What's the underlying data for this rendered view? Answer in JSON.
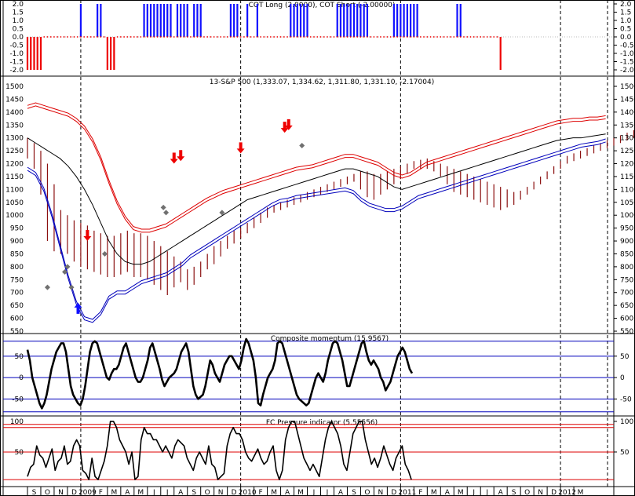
{
  "colors": {
    "cot_long": "#1010ff",
    "cot_short": "#ee0000",
    "price_bar": "#8b1010",
    "upper_band": "#dd0000",
    "middle_band": "#000000",
    "lower_band": "#0000bb",
    "sell_arrow": "#ee0000",
    "buy_arrow": "#1010ff",
    "diamond": "#707070",
    "momentum_line": "#000000",
    "momentum_ref": "#0000bb",
    "pressure_line": "#000000",
    "pressure_ref": "#dd0000"
  },
  "x_axis": {
    "labels": [
      "S",
      "O",
      "N",
      "D",
      "2009",
      "F",
      "M",
      "A",
      "M",
      "J",
      "J",
      "A",
      "S",
      "O",
      "N",
      "D",
      "2010",
      "F",
      "M",
      "A",
      "M",
      "J",
      "J",
      "A",
      "S",
      "O",
      "N",
      "D",
      "2011",
      "F",
      "M",
      "A",
      "M",
      "J",
      "J",
      "A",
      "S",
      "O",
      "N",
      "D",
      "2012",
      "M"
    ]
  },
  "chart_data": [
    {
      "type": "bar",
      "title": "COT Long (2.0000), COT Short (-2.00000)",
      "ylim": [
        -2,
        2
      ],
      "yticks": [
        "2.0",
        "1.5",
        "1.0",
        "0.5",
        "0.0",
        "-0.5",
        "-1.0",
        "-1.5",
        "-2.0"
      ],
      "x_start_month": 0,
      "x_step_months": 0.25,
      "series": [
        {
          "name": "COT Long",
          "marker_value": 2,
          "values": [
            0,
            0,
            0,
            0,
            0,
            0,
            0,
            0,
            0,
            0,
            0,
            0,
            0,
            0,
            0,
            0,
            2,
            0,
            0,
            0,
            0,
            2,
            2,
            0,
            0,
            0,
            0,
            0,
            0,
            0,
            0,
            0,
            0,
            0,
            0,
            2,
            2,
            2,
            2,
            2,
            2,
            2,
            2,
            2,
            0,
            2,
            2,
            2,
            2,
            0,
            2,
            2,
            2,
            0,
            0,
            0,
            0,
            0,
            0,
            0,
            0,
            2,
            2,
            2,
            0,
            0,
            2,
            0,
            0,
            2,
            0,
            0,
            0,
            0,
            0,
            0,
            0,
            0,
            0,
            2,
            2,
            2,
            2,
            2,
            2,
            0,
            0,
            0,
            0,
            0,
            0,
            0,
            0,
            2,
            2,
            2,
            2,
            2,
            2,
            2,
            2,
            2,
            2,
            0,
            0,
            0,
            0,
            0,
            0,
            0,
            2,
            2,
            2,
            2,
            2,
            2,
            2,
            2,
            0,
            0,
            0,
            0,
            0,
            0,
            0,
            0,
            0,
            0,
            0,
            2,
            2,
            0,
            0,
            0,
            0,
            0,
            0,
            0,
            0,
            0,
            0,
            0,
            0,
            0
          ]
        },
        {
          "name": "COT Short",
          "marker_value": -2,
          "values": [
            -2,
            -2,
            -2,
            -2,
            -2,
            0,
            0,
            0,
            0,
            0,
            0,
            0,
            0,
            0,
            0,
            0,
            0,
            0,
            0,
            0,
            0,
            0,
            0,
            0,
            -2,
            -2,
            -2,
            0,
            0,
            0,
            0,
            0,
            0,
            0,
            0,
            0,
            0,
            0,
            0,
            0,
            0,
            0,
            0,
            0,
            0,
            0,
            0,
            0,
            0,
            0,
            0,
            0,
            0,
            0,
            0,
            0,
            0,
            0,
            0,
            0,
            0,
            0,
            0,
            0,
            0,
            0,
            0,
            0,
            0,
            0,
            0,
            0,
            0,
            0,
            0,
            0,
            0,
            0,
            0,
            0,
            0,
            0,
            0,
            0,
            0,
            0,
            0,
            0,
            0,
            0,
            0,
            0,
            0,
            0,
            0,
            0,
            0,
            0,
            0,
            0,
            0,
            0,
            0,
            0,
            0,
            0,
            0,
            0,
            0,
            0,
            0,
            0,
            0,
            0,
            0,
            0,
            0,
            0,
            0,
            0,
            0,
            0,
            0,
            0,
            0,
            0,
            0,
            0,
            0,
            0,
            0,
            0,
            0,
            0,
            0,
            0,
            0,
            0,
            0,
            0,
            0,
            0,
            -2
          ]
        }
      ]
    },
    {
      "type": "line",
      "title": "13-S&P 500 (1,333.07, 1,334.62, 1,311.80, 1,331.10, -2.17004)",
      "ylim": [
        550,
        1500
      ],
      "yticks": [
        1500,
        1450,
        1400,
        1350,
        1300,
        1250,
        1200,
        1150,
        1100,
        1050,
        1000,
        950,
        900,
        850,
        800,
        750,
        700,
        650,
        600,
        550
      ],
      "x_start_month": 0,
      "x_step_months": 0.5,
      "series": [
        {
          "name": "price_high",
          "values": [
            1300,
            1280,
            1250,
            1200,
            1120,
            1020,
            1000,
            980,
            970,
            960,
            940,
            930,
            920,
            920,
            930,
            940,
            930,
            930,
            920,
            900,
            880,
            860,
            840,
            820,
            790,
            800,
            820,
            850,
            880,
            900,
            920,
            940,
            950,
            970,
            990,
            1010,
            1030,
            1040,
            1050,
            1060,
            1070,
            1080,
            1090,
            1100,
            1110,
            1120,
            1130,
            1140,
            1150,
            1160,
            1170,
            1170,
            1160,
            1160,
            1170,
            1180,
            1190,
            1200,
            1210,
            1215,
            1220,
            1210,
            1200,
            1190,
            1180,
            1170,
            1160,
            1150,
            1140,
            1130,
            1120,
            1110,
            1100,
            1090,
            1095,
            1110,
            1130,
            1150,
            1170,
            1190,
            1210,
            1230,
            1240,
            1250,
            1260,
            1270,
            1280,
            1290,
            1300,
            1310,
            1320,
            1330,
            1340,
            1350,
            1355,
            1360,
            1365,
            1370,
            1360,
            1360,
            1350,
            1340
          ]
        },
        {
          "name": "price_low",
          "values": [
            1220,
            1180,
            1080,
            900,
            860,
            850,
            850,
            820,
            800,
            790,
            780,
            770,
            760,
            760,
            770,
            780,
            760,
            760,
            750,
            730,
            710,
            690,
            720,
            740,
            710,
            730,
            760,
            790,
            810,
            840,
            870,
            890,
            910,
            930,
            950,
            970,
            990,
            1010,
            1020,
            1030,
            1040,
            1050,
            1060,
            1070,
            1080,
            1090,
            1100,
            1110,
            1120,
            1130,
            1100,
            1070,
            1060,
            1080,
            1100,
            1120,
            1140,
            1160,
            1180,
            1180,
            1180,
            1170,
            1150,
            1120,
            1090,
            1080,
            1070,
            1060,
            1050,
            1040,
            1030,
            1020,
            1030,
            1040,
            1060,
            1080,
            1100,
            1120,
            1140,
            1160,
            1180,
            1200,
            1210,
            1220,
            1230,
            1240,
            1250,
            1260,
            1270,
            1280,
            1290,
            1300,
            1310,
            1320,
            1330,
            1330,
            1340,
            1340,
            1330,
            1320,
            1310,
            1300
          ]
        },
        {
          "name": "upper_band",
          "values": [
            1420,
            1430,
            1420,
            1410,
            1400,
            1390,
            1370,
            1340,
            1290,
            1220,
            1130,
            1050,
            990,
            950,
            940,
            940,
            950,
            960,
            980,
            1000,
            1020,
            1040,
            1060,
            1075,
            1090,
            1100,
            1110,
            1120,
            1130,
            1140,
            1150,
            1160,
            1170,
            1180,
            1185,
            1190,
            1200,
            1210,
            1220,
            1230,
            1230,
            1220,
            1210,
            1200,
            1180,
            1160,
            1150,
            1160,
            1180,
            1200,
            1210,
            1220,
            1230,
            1240,
            1250,
            1260,
            1270,
            1280,
            1290,
            1300,
            1310,
            1320,
            1330,
            1340,
            1350,
            1360,
            1365,
            1370,
            1370,
            1375,
            1375,
            1380
          ]
        },
        {
          "name": "middle_band",
          "values": [
            1300,
            1280,
            1260,
            1240,
            1220,
            1190,
            1150,
            1100,
            1040,
            970,
            900,
            850,
            820,
            810,
            810,
            820,
            840,
            860,
            880,
            900,
            920,
            940,
            960,
            980,
            1000,
            1020,
            1040,
            1060,
            1070,
            1080,
            1090,
            1100,
            1110,
            1120,
            1130,
            1140,
            1150,
            1160,
            1170,
            1180,
            1180,
            1170,
            1160,
            1150,
            1130,
            1110,
            1100,
            1110,
            1120,
            1130,
            1140,
            1150,
            1160,
            1170,
            1180,
            1190,
            1200,
            1210,
            1220,
            1230,
            1240,
            1250,
            1260,
            1270,
            1280,
            1290,
            1295,
            1300,
            1300,
            1305,
            1310,
            1315
          ]
        },
        {
          "name": "lower_band",
          "values": [
            1180,
            1160,
            1100,
            1000,
            880,
            760,
            660,
            600,
            590,
            620,
            680,
            700,
            700,
            720,
            740,
            750,
            760,
            770,
            790,
            810,
            840,
            860,
            880,
            900,
            920,
            940,
            960,
            980,
            1000,
            1020,
            1040,
            1055,
            1060,
            1070,
            1075,
            1080,
            1085,
            1090,
            1095,
            1100,
            1090,
            1060,
            1040,
            1030,
            1020,
            1020,
            1030,
            1050,
            1070,
            1080,
            1090,
            1100,
            1110,
            1120,
            1130,
            1140,
            1150,
            1160,
            1170,
            1180,
            1190,
            1200,
            1210,
            1220,
            1230,
            1240,
            1250,
            1260,
            1270,
            1275,
            1280,
            1290
          ]
        }
      ],
      "sell_signals": [
        {
          "x": 4.5,
          "y": 900
        },
        {
          "x": 11.0,
          "y": 1200
        },
        {
          "x": 11.5,
          "y": 1210
        },
        {
          "x": 16.0,
          "y": 1240
        },
        {
          "x": 19.3,
          "y": 1320
        },
        {
          "x": 19.6,
          "y": 1330
        }
      ],
      "buy_signals": [
        {
          "x": 3.8,
          "y": 660
        }
      ],
      "diamond_markers": [
        {
          "x": 1.5,
          "y": 720
        },
        {
          "x": 2.8,
          "y": 780
        },
        {
          "x": 3.0,
          "y": 800
        },
        {
          "x": 3.3,
          "y": 720
        },
        {
          "x": 5.8,
          "y": 850
        },
        {
          "x": 10.2,
          "y": 1030
        },
        {
          "x": 10.4,
          "y": 1010
        },
        {
          "x": 14.6,
          "y": 1010
        },
        {
          "x": 20.6,
          "y": 1270
        }
      ]
    },
    {
      "type": "line",
      "title": "Composite momentum (15.9567)",
      "ylim": [
        -75,
        90
      ],
      "yticks": [
        50,
        0,
        -50
      ],
      "reference_lines": [
        85,
        50,
        0,
        -50,
        -80
      ],
      "x_start_month": 0,
      "x_step_months": 0.5,
      "values": [
        65,
        40,
        0,
        -20,
        -40,
        -60,
        -72,
        -60,
        -40,
        -10,
        20,
        40,
        60,
        70,
        80,
        80,
        60,
        20,
        -20,
        -40,
        -50,
        -60,
        -65,
        -50,
        -20,
        20,
        60,
        80,
        85,
        80,
        60,
        40,
        20,
        0,
        -5,
        10,
        20,
        20,
        30,
        50,
        70,
        80,
        60,
        40,
        20,
        0,
        -10,
        -10,
        0,
        20,
        40,
        70,
        80,
        60,
        40,
        20,
        -5,
        -20,
        -10,
        0,
        5,
        10,
        20,
        40,
        60,
        70,
        80,
        60,
        20,
        -20,
        -40,
        -50,
        -45,
        -40,
        -20,
        10,
        40,
        30,
        10,
        0,
        -10,
        10,
        30,
        40,
        50,
        50,
        40,
        30,
        20,
        40,
        70,
        90,
        80,
        60,
        40,
        0,
        -60,
        -65,
        -40,
        -20,
        0,
        10,
        20,
        40,
        80,
        85,
        80,
        60,
        40,
        20,
        0,
        -20,
        -40,
        -50,
        -55,
        -60,
        -65,
        -60,
        -40,
        -20,
        0,
        10,
        0,
        -10,
        10,
        40,
        60,
        80,
        85,
        80,
        60,
        40,
        10,
        -20,
        -20,
        0,
        20,
        40,
        60,
        80,
        85,
        60,
        40,
        30,
        40,
        30,
        20,
        0,
        -10,
        -30,
        -20,
        -10,
        10,
        30,
        50,
        60,
        70,
        60,
        40,
        20,
        10
      ]
    },
    {
      "type": "line",
      "title": "FC Pressure indicator (5.55556)",
      "ylim": [
        0,
        105
      ],
      "yticks": [
        100,
        50
      ],
      "reference_lines": [
        95,
        90,
        50,
        5
      ],
      "x_start_month": 0,
      "x_step_months": 0.5,
      "values": [
        10,
        25,
        30,
        60,
        45,
        40,
        25,
        40,
        55,
        20,
        35,
        40,
        60,
        30,
        35,
        60,
        70,
        60,
        20,
        15,
        5,
        40,
        10,
        5,
        20,
        35,
        60,
        100,
        100,
        90,
        70,
        60,
        50,
        30,
        50,
        5,
        10,
        70,
        90,
        80,
        80,
        70,
        70,
        60,
        50,
        60,
        50,
        40,
        60,
        70,
        65,
        60,
        40,
        30,
        20,
        40,
        50,
        40,
        30,
        60,
        30,
        25,
        5,
        10,
        15,
        60,
        80,
        90,
        80,
        80,
        70,
        50,
        40,
        35,
        45,
        55,
        40,
        30,
        35,
        50,
        60,
        20,
        5,
        20,
        70,
        90,
        100,
        100,
        80,
        60,
        40,
        30,
        20,
        30,
        20,
        10,
        40,
        70,
        90,
        100,
        90,
        80,
        60,
        30,
        20,
        50,
        80,
        90,
        100,
        100,
        70,
        50,
        30,
        40,
        25,
        40,
        60,
        45,
        30,
        20,
        40,
        50,
        60,
        30,
        20,
        5
      ]
    }
  ]
}
